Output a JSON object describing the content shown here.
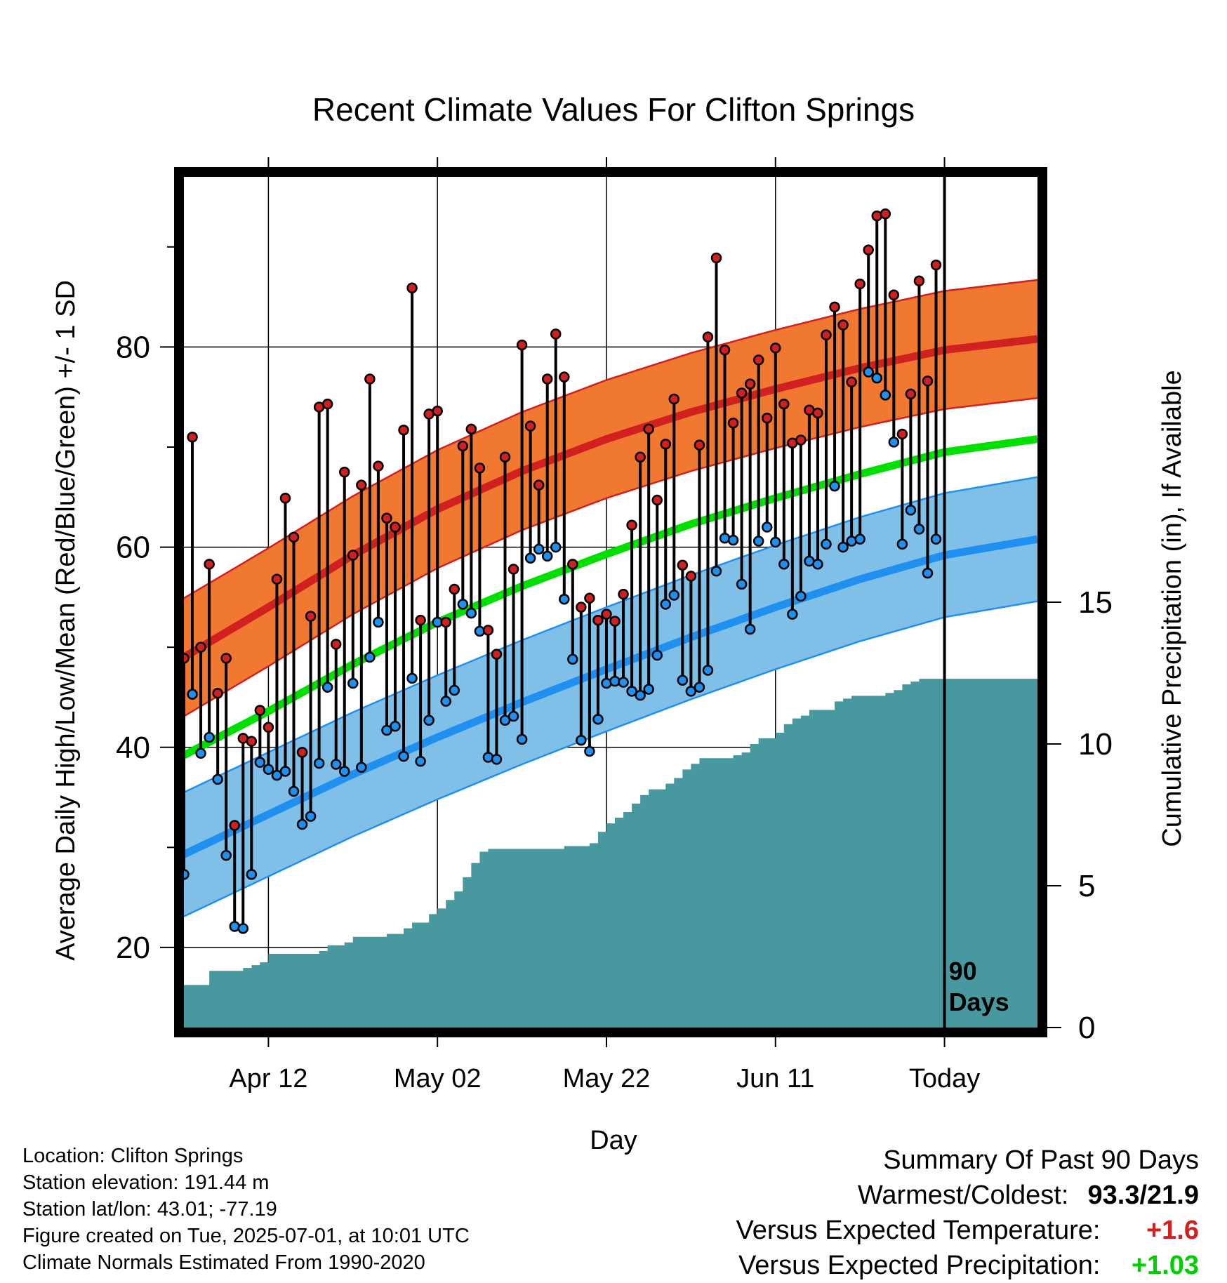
{
  "chart_data": {
    "type": "line",
    "title": "Recent Climate Values For Clifton Springs",
    "xlabel": "Day",
    "ylabel": "Average Daily High/Low/Mean (Red/Blue/Green) +/- 1 SD",
    "y2label": "Cumulative Precipitation (in), If Available",
    "ylim": [
      12,
      97
    ],
    "y2lim": [
      0,
      30
    ],
    "xlim": [
      0,
      101
    ],
    "x_ticks": [
      {
        "x": 10,
        "label": "Apr 12"
      },
      {
        "x": 30,
        "label": "May 02"
      },
      {
        "x": 50,
        "label": "May 22"
      },
      {
        "x": 70,
        "label": "Jun 11"
      },
      {
        "x": 90,
        "label": "Today"
      }
    ],
    "y_ticks": [
      20,
      40,
      60,
      80
    ],
    "y2_ticks": [
      0,
      5,
      10,
      15
    ],
    "today_marker": {
      "x": 90,
      "label_line1": "90",
      "label_line2": "Days"
    },
    "normals": {
      "x": [
        0,
        10,
        20,
        30,
        40,
        50,
        60,
        70,
        80,
        90,
        101
      ],
      "high_mean": [
        49.0,
        54.0,
        59.2,
        63.8,
        67.6,
        70.8,
        73.5,
        75.8,
        77.9,
        79.7,
        80.8
      ],
      "high_sd": 5.9,
      "low_mean": [
        29.3,
        33.3,
        37.3,
        41.0,
        44.5,
        47.8,
        51.0,
        54.0,
        56.8,
        59.2,
        60.8
      ],
      "low_sd": 6.2,
      "mean_mean": [
        39.2,
        43.6,
        48.3,
        52.5,
        56.1,
        59.3,
        62.3,
        64.9,
        67.3,
        69.5,
        70.8
      ]
    },
    "daily": {
      "x": [
        0,
        1,
        2,
        3,
        4,
        5,
        6,
        7,
        8,
        9,
        10,
        11,
        12,
        13,
        14,
        15,
        16,
        17,
        18,
        19,
        20,
        21,
        22,
        23,
        24,
        25,
        26,
        27,
        28,
        29,
        30,
        31,
        32,
        33,
        34,
        35,
        36,
        37,
        38,
        39,
        40,
        41,
        42,
        43,
        44,
        45,
        46,
        47,
        48,
        49,
        50,
        51,
        52,
        53,
        54,
        55,
        56,
        57,
        58,
        59,
        60,
        61,
        62,
        63,
        64,
        65,
        66,
        67,
        68,
        69,
        70,
        71,
        72,
        73,
        74,
        75,
        76,
        77,
        78,
        79,
        80,
        81,
        82,
        83,
        84,
        85,
        86,
        87,
        88,
        89
      ],
      "high": [
        48.9,
        71.0,
        50.0,
        58.3,
        45.4,
        48.9,
        32.2,
        40.9,
        40.6,
        43.7,
        42.0,
        56.8,
        64.9,
        61.0,
        39.5,
        53.1,
        74.0,
        74.3,
        50.3,
        67.5,
        59.2,
        66.2,
        76.8,
        68.1,
        62.9,
        62.0,
        71.7,
        85.9,
        52.7,
        73.3,
        73.6,
        52.5,
        55.8,
        70.1,
        71.8,
        67.9,
        51.7,
        49.3,
        69.0,
        57.8,
        80.2,
        72.1,
        66.2,
        76.8,
        81.3,
        77.0,
        58.3,
        54.0,
        54.9,
        52.7,
        53.3,
        52.6,
        55.3,
        62.2,
        69.0,
        71.8,
        64.7,
        70.3,
        74.8,
        58.2,
        57.1,
        70.2,
        81.0,
        88.9,
        79.7,
        72.4,
        75.4,
        76.3,
        78.7,
        72.9,
        79.9,
        74.3,
        70.4,
        70.7,
        73.7,
        73.4,
        81.2,
        84.0,
        82.2,
        76.5,
        86.3,
        89.7,
        93.1,
        93.3,
        85.2,
        71.3,
        75.3,
        86.6,
        76.6,
        88.2
      ],
      "low": [
        27.3,
        45.3,
        39.4,
        41.0,
        36.8,
        29.2,
        22.1,
        21.9,
        27.3,
        38.5,
        37.8,
        37.2,
        37.6,
        35.6,
        32.3,
        33.1,
        38.4,
        46.0,
        38.3,
        37.6,
        46.4,
        38.0,
        49.0,
        52.5,
        41.7,
        42.1,
        39.1,
        46.9,
        38.6,
        42.7,
        52.5,
        44.6,
        45.7,
        54.3,
        53.4,
        51.6,
        39.0,
        38.8,
        42.7,
        43.1,
        40.8,
        58.9,
        59.8,
        59.1,
        60.0,
        54.8,
        48.8,
        40.7,
        39.6,
        42.8,
        46.4,
        46.6,
        46.5,
        45.6,
        45.2,
        45.8,
        49.2,
        54.3,
        55.2,
        46.7,
        45.6,
        46.0,
        47.7,
        57.6,
        60.9,
        60.7,
        56.3,
        51.8,
        60.6,
        62.0,
        60.5,
        58.3,
        53.3,
        55.1,
        58.6,
        58.3,
        60.3,
        66.1,
        60.0,
        60.6,
        60.8,
        77.5,
        76.9,
        75.2,
        70.5,
        60.3,
        63.7,
        61.8,
        57.4,
        60.8
      ]
    },
    "precip_cumulative": {
      "x": [
        0,
        2,
        3,
        7,
        8,
        9,
        10,
        15,
        16,
        17,
        19,
        20,
        23,
        24,
        26,
        27,
        29,
        30,
        31,
        32,
        33,
        34,
        35,
        36,
        44,
        45,
        48,
        49,
        50,
        51,
        52,
        53,
        54,
        55,
        57,
        58,
        59,
        60,
        61,
        64,
        65,
        66,
        67,
        68,
        70,
        71,
        72,
        73,
        74,
        77,
        78,
        79,
        83,
        84,
        85,
        86,
        87,
        88,
        89,
        101
      ],
      "values": [
        1.5,
        1.5,
        2.0,
        2.1,
        2.2,
        2.3,
        2.6,
        2.6,
        2.7,
        2.9,
        3.0,
        3.2,
        3.2,
        3.3,
        3.5,
        3.7,
        4.0,
        4.2,
        4.5,
        4.8,
        5.3,
        5.8,
        6.2,
        6.3,
        6.3,
        6.4,
        6.5,
        6.9,
        7.2,
        7.4,
        7.6,
        7.9,
        8.2,
        8.4,
        8.6,
        8.8,
        9.1,
        9.3,
        9.5,
        9.5,
        9.6,
        9.7,
        10.0,
        10.2,
        10.4,
        10.7,
        10.9,
        11.0,
        11.2,
        11.5,
        11.6,
        11.7,
        11.8,
        11.9,
        12.1,
        12.2,
        12.3,
        12.3,
        12.3,
        12.3
      ]
    },
    "colors": {
      "high_line": "#d02020",
      "high_band": "#f07830",
      "low_line": "#2090f0",
      "low_band": "#80c0e8",
      "mean_line": "#00e000",
      "precip_fill": "#4898a0",
      "high_marker": "#d02020",
      "low_marker": "#2090f0"
    }
  },
  "info": {
    "location": "Location: Clifton Springs",
    "elevation": "Station elevation: 191.44 m",
    "latlon": "Station lat/lon: 43.01; -77.19",
    "created": "Figure created on Tue, 2025-07-01, at 10:01 UTC",
    "normals": "Climate Normals Estimated From 1990-2020"
  },
  "summary": {
    "title": "Summary Of Past 90 Days",
    "warmest_label": "Warmest/Coldest:",
    "warmest_value": "93.3/21.9",
    "temp_label": "Versus Expected Temperature:",
    "temp_value": "+1.6",
    "temp_color": "#d02020",
    "precip_label": "Versus Expected Precipitation:",
    "precip_value": "+1.03",
    "precip_color": "#00d000"
  }
}
